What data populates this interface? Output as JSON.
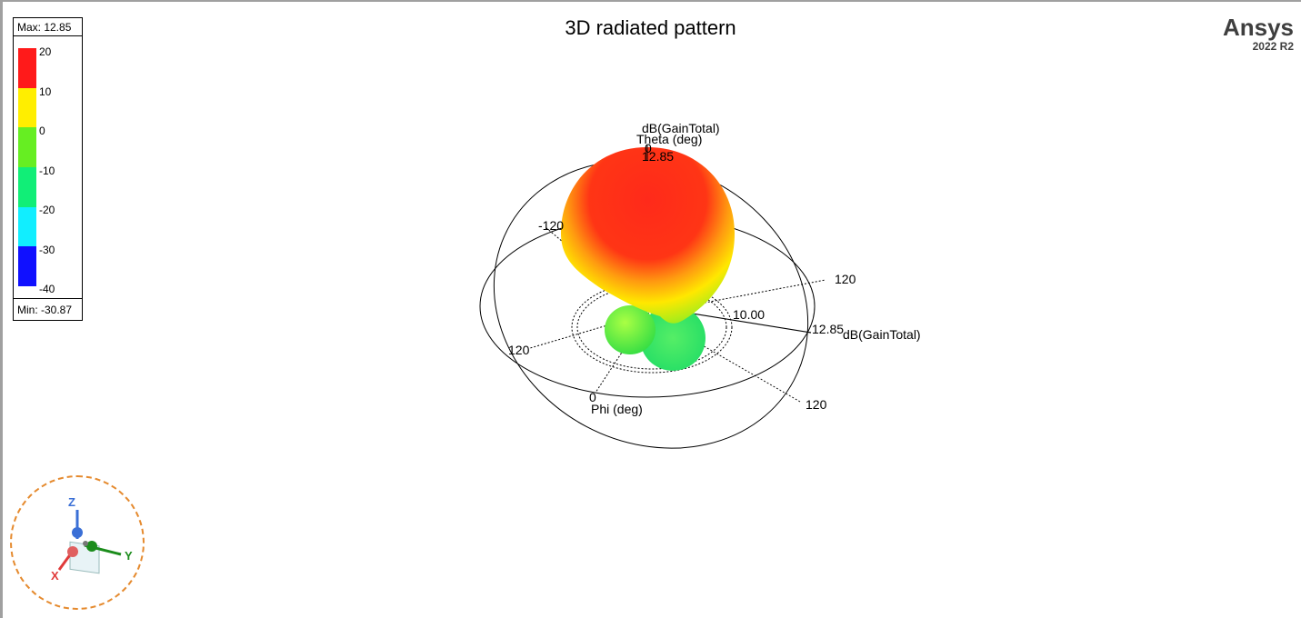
{
  "plot": {
    "title": "3D radiated pattern"
  },
  "brand": {
    "name": "Ansys",
    "version": "2022 R2"
  },
  "legend": {
    "max_label": "Max: 12.85",
    "min_label": "Min: -30.87",
    "ticks": [
      "20",
      "10",
      "0",
      "-10",
      "-20",
      "-30",
      "-40"
    ],
    "colors": [
      "#ff1a1a",
      "#ffee00",
      "#66ee22",
      "#11ee77",
      "#11eeff",
      "#1010ff"
    ]
  },
  "axes": {
    "quantity_top": "dB(GainTotal)",
    "theta_label": "Theta (deg)",
    "theta_zero": "0",
    "max_value": "12.85",
    "neg120": "-120",
    "r120": "120",
    "l120": "120",
    "b120": "120",
    "ring_value": "10.00",
    "right_max": "12.85",
    "right_quantity": "dB(GainTotal)",
    "phi_zero": "0",
    "phi_label": "Phi (deg)"
  },
  "triad": {
    "z": "Z",
    "y": "Y",
    "x": "X",
    "z_color": "#3a6fd6",
    "y_color": "#1b8c1b",
    "x_color": "#e03a3a"
  }
}
